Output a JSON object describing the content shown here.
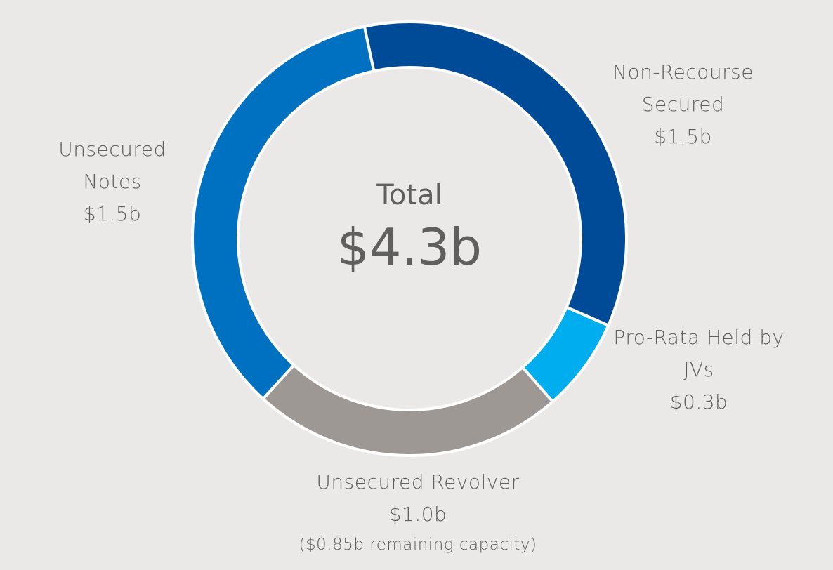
{
  "chart_data": {
    "type": "pie",
    "title": "Total",
    "total": 4.3,
    "total_label": "$4.3b",
    "categories": [
      "Non-Recourse Secured",
      "Pro-Rata Held by JVs",
      "Unsecured Revolver",
      "Unsecured Notes"
    ],
    "values": [
      1.5,
      0.3,
      1.0,
      1.5
    ],
    "value_labels": [
      "$1.5b",
      "$0.3b",
      "$1.0b",
      "$1.5b"
    ],
    "colors": [
      "#004b97",
      "#00aeef",
      "#9d9893",
      "#0070c0"
    ],
    "annotations": [
      "($0.85b remaining capacity)"
    ]
  }
}
